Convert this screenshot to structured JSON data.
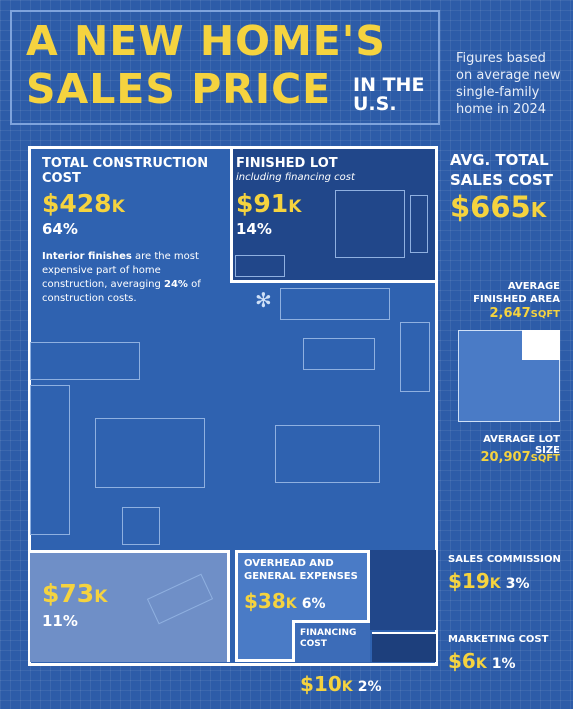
{
  "header": {
    "title_line1": "A NEW HOME'S",
    "title_line2": "SALES PRICE",
    "title_suffix_1": "IN THE",
    "title_suffix_2": "U.S.",
    "note": "Figures based on average new single-family home in 2024"
  },
  "construction": {
    "heading_1": "TOTAL CONSTRUCTION",
    "heading_2": "COST",
    "value": "$428",
    "unit": "K",
    "pct": "64%",
    "note_bold": "Interior finishes",
    "note_rest": " are the most expensive part of home construction, averaging ",
    "note_bold2": "24%",
    "note_end": " of construction costs."
  },
  "lot": {
    "heading": "FINISHED LOT",
    "sub": "including financing cost",
    "value": "$91",
    "unit": "K",
    "pct": "14%"
  },
  "total": {
    "heading_1": "AVG. TOTAL",
    "heading_2": "SALES COST",
    "value": "$665",
    "unit": "K"
  },
  "area": {
    "finished_label_1": "AVERAGE",
    "finished_label_2": "FINISHED AREA",
    "finished_value": "2,647",
    "finished_unit": "SQFT",
    "lot_label": "AVERAGE LOT SIZE",
    "lot_value": "20,907",
    "lot_unit": "SQFT"
  },
  "profit": {
    "value": "$73",
    "unit": "K",
    "pct": "11%"
  },
  "overhead": {
    "heading_1": "OVERHEAD AND",
    "heading_2": "GENERAL EXPENSES",
    "value": "$38",
    "unit": "K",
    "pct": "6%"
  },
  "financing": {
    "heading_1": "FINANCING",
    "heading_2": "COST",
    "value": "$10",
    "unit": "K",
    "pct": "2%"
  },
  "commission": {
    "heading": "SALES COMMISSION",
    "value": "$19",
    "unit": "K",
    "pct": "3%"
  },
  "marketing": {
    "heading": "MARKETING COST",
    "value": "$6",
    "unit": "K",
    "pct": "1%"
  },
  "colors": {
    "background": "#2d5ca8",
    "accent": "#f5d33f",
    "dark_room": "#21478a"
  }
}
